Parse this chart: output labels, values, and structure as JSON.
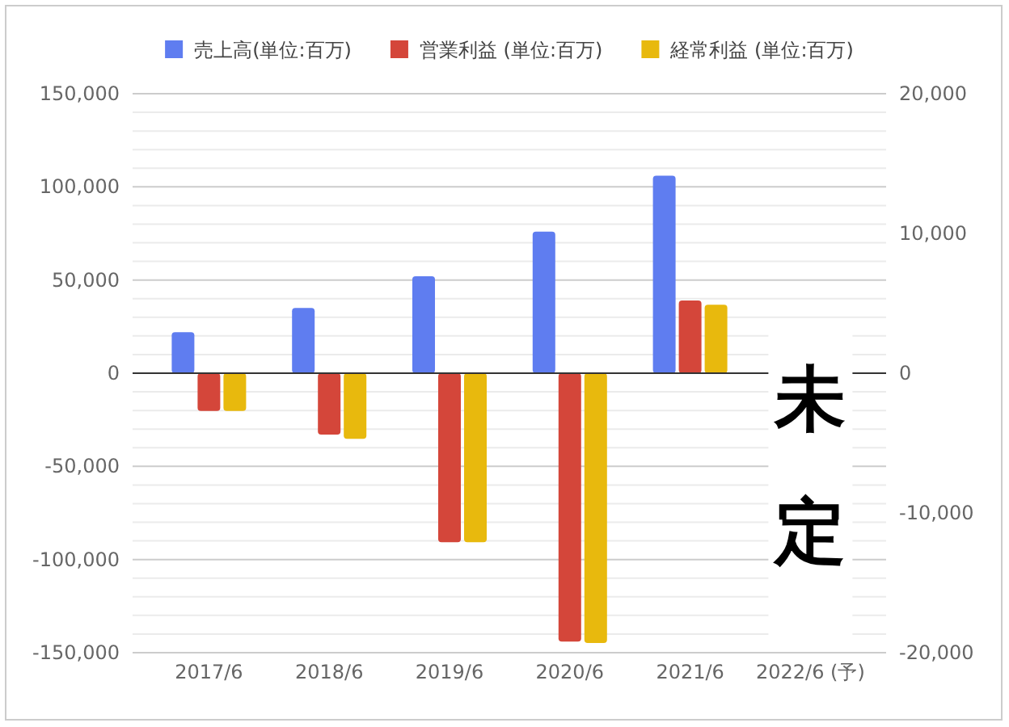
{
  "chart_data": {
    "type": "bar",
    "categories": [
      "2017/6",
      "2018/6",
      "2019/6",
      "2020/6",
      "2021/6",
      "2022/6 (予)"
    ],
    "series": [
      {
        "name": "売上高(単位:百万)",
        "color": "#5f7df0",
        "values": [
          22000,
          35000,
          52000,
          76000,
          106000,
          null
        ]
      },
      {
        "name": "営業利益 (単位:百万)",
        "color": "#d4463a",
        "axis": "y2",
        "values": [
          -2700,
          -4400,
          -12100,
          -19200,
          5200,
          null
        ]
      },
      {
        "name": "経常利益 (単位:百万)",
        "color": "#e8b90d",
        "axis": "y2",
        "values": [
          -2700,
          -4700,
          -12100,
          -19300,
          4900,
          null
        ]
      }
    ],
    "ylim": [
      -150000,
      150000
    ],
    "yticks": [
      {
        "value": -150000,
        "label": "-150,000"
      },
      {
        "value": -100000,
        "label": "-100,000"
      },
      {
        "value": -50000,
        "label": "-50,000"
      },
      0,
      {
        "value": 50000,
        "label": "50,000"
      },
      {
        "value": 100000,
        "label": "100,000"
      },
      {
        "value": 150000,
        "label": "150,000"
      }
    ],
    "y2lim": [
      -20000,
      20000
    ],
    "y2ticks": [
      {
        "value": -20000,
        "label": "-20,000"
      },
      {
        "value": -10000,
        "label": "-10,000"
      },
      0,
      {
        "value": 10000,
        "label": "10,000"
      },
      {
        "value": 20000,
        "label": "20,000"
      }
    ],
    "annotations": [
      "未定"
    ],
    "grid": "y",
    "legend": "top"
  }
}
